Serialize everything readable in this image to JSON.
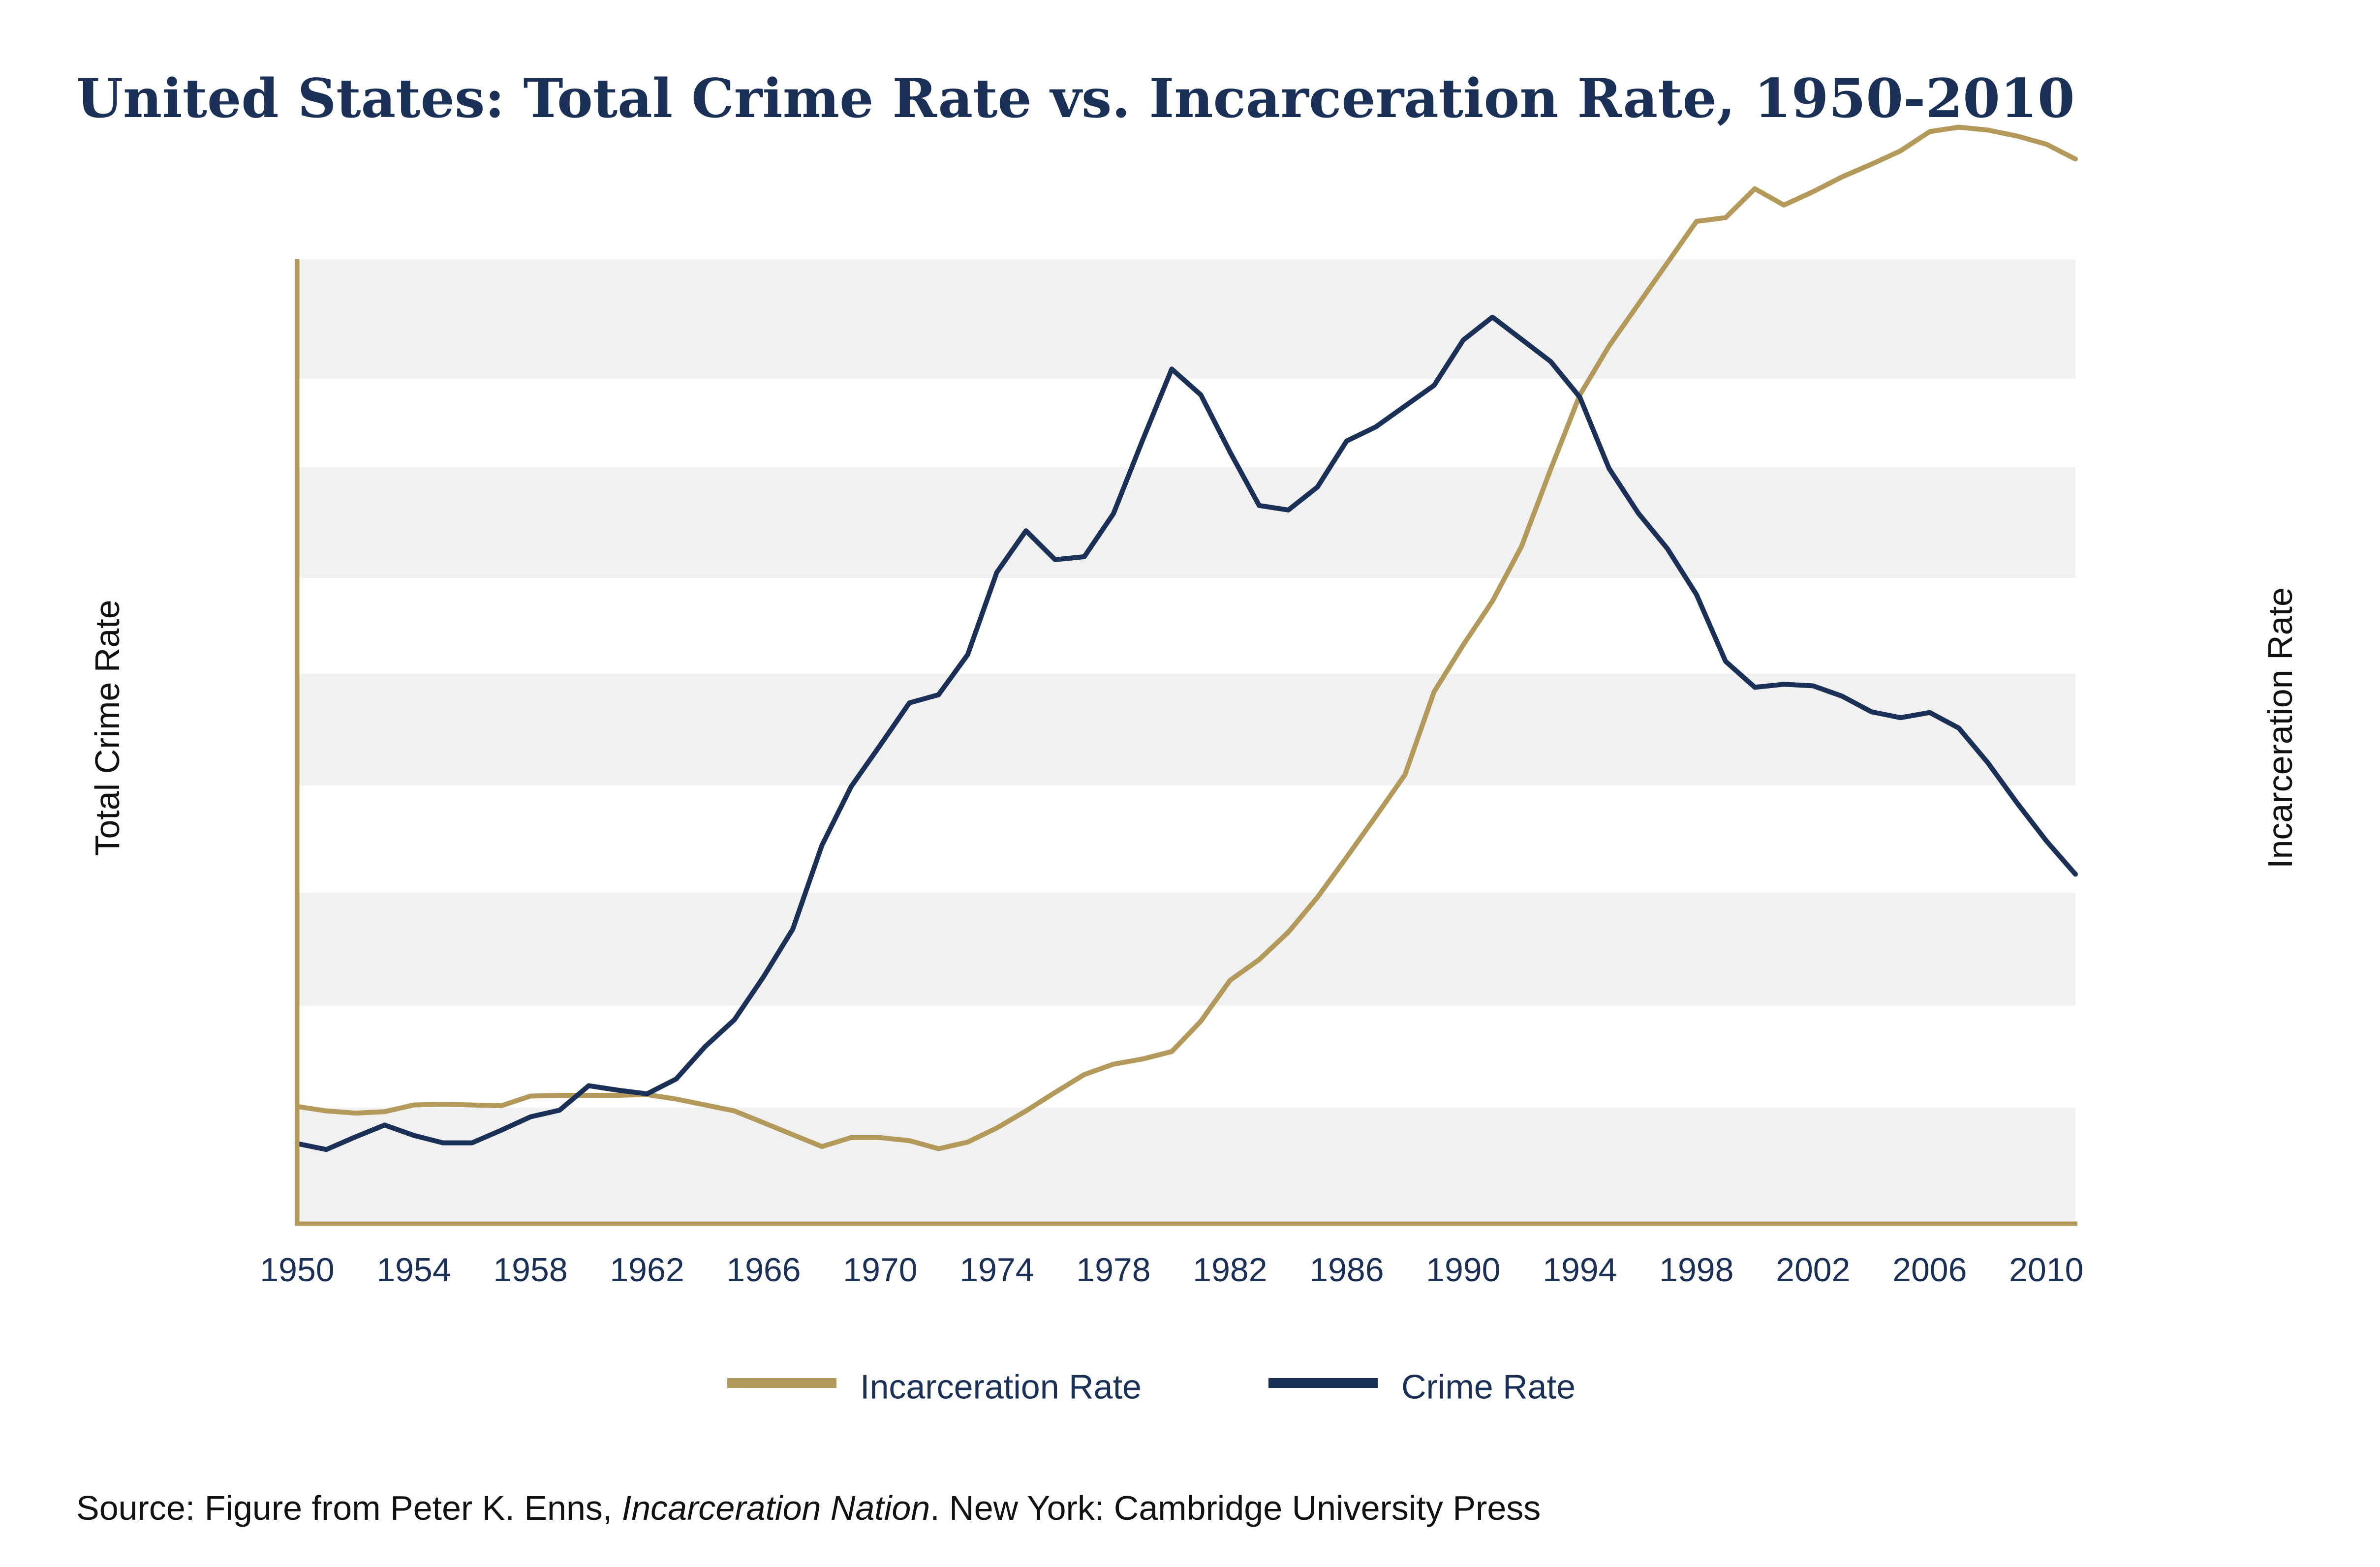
{
  "chart_data": {
    "type": "line",
    "title": "United States: Total Crime Rate vs. Incarceration Rate, 1950-2010",
    "ylabel_left": "Total Crime Rate",
    "ylabel_right": "Incarceration Rate",
    "xlabel": "",
    "xlim": [
      1950,
      2011
    ],
    "x_ticks": [
      "1950",
      "1954",
      "1958",
      "1962",
      "1966",
      "1970",
      "1974",
      "1978",
      "1982",
      "1986",
      "1990",
      "1994",
      "1998",
      "2002",
      "2006",
      "2010"
    ],
    "grid": "alternating horizontal bands",
    "legend_position": "bottom-center",
    "series": [
      {
        "name": "Incarceration Rate",
        "color": "#b39a5a",
        "points": [
          [
            1950,
            0.158
          ],
          [
            1951,
            0.152
          ],
          [
            1952,
            0.149
          ],
          [
            1953,
            0.151
          ],
          [
            1954,
            0.16
          ],
          [
            1955,
            0.161
          ],
          [
            1956,
            0.16
          ],
          [
            1957,
            0.159
          ],
          [
            1958,
            0.172
          ],
          [
            1959,
            0.173
          ],
          [
            1960,
            0.173
          ],
          [
            1961,
            0.173
          ],
          [
            1962,
            0.174
          ],
          [
            1963,
            0.168
          ],
          [
            1964,
            0.16
          ],
          [
            1965,
            0.152
          ],
          [
            1966,
            0.136
          ],
          [
            1967,
            0.12
          ],
          [
            1968,
            0.104
          ],
          [
            1969,
            0.116
          ],
          [
            1970,
            0.116
          ],
          [
            1971,
            0.112
          ],
          [
            1972,
            0.101
          ],
          [
            1973,
            0.11
          ],
          [
            1974,
            0.129
          ],
          [
            1975,
            0.152
          ],
          [
            1976,
            0.177
          ],
          [
            1977,
            0.201
          ],
          [
            1978,
            0.215
          ],
          [
            1979,
            0.222
          ],
          [
            1980,
            0.232
          ],
          [
            1981,
            0.273
          ],
          [
            1982,
            0.328
          ],
          [
            1983,
            0.356
          ],
          [
            1984,
            0.393
          ],
          [
            1985,
            0.44
          ],
          [
            1986,
            0.494
          ],
          [
            1987,
            0.549
          ],
          [
            1988,
            0.605
          ],
          [
            1989,
            0.717
          ],
          [
            1990,
            0.78
          ],
          [
            1991,
            0.839
          ],
          [
            1992,
            0.913
          ],
          [
            1993,
            1.017
          ],
          [
            1994,
            1.117
          ],
          [
            1995,
            1.183
          ],
          [
            1996,
            1.239
          ],
          [
            1997,
            1.295
          ],
          [
            1998,
            1.351
          ],
          [
            1999,
            1.356
          ],
          [
            2000,
            1.395
          ],
          [
            2001,
            1.373
          ],
          [
            2002,
            1.391
          ],
          [
            2003,
            1.411
          ],
          [
            2004,
            1.428
          ],
          [
            2005,
            1.446
          ],
          [
            2006,
            1.472
          ],
          [
            2007,
            1.478
          ],
          [
            2008,
            1.474
          ],
          [
            2009,
            1.466
          ],
          [
            2010,
            1.455
          ],
          [
            2011,
            1.435
          ]
        ]
      },
      {
        "name": "Crime Rate",
        "color": "#1b3057",
        "points": [
          [
            1950,
            0.108
          ],
          [
            1951,
            0.1
          ],
          [
            1952,
            0.117
          ],
          [
            1953,
            0.133
          ],
          [
            1954,
            0.119
          ],
          [
            1955,
            0.109
          ],
          [
            1956,
            0.109
          ],
          [
            1957,
            0.126
          ],
          [
            1958,
            0.144
          ],
          [
            1959,
            0.153
          ],
          [
            1960,
            0.186
          ],
          [
            1961,
            0.18
          ],
          [
            1962,
            0.175
          ],
          [
            1963,
            0.195
          ],
          [
            1964,
            0.239
          ],
          [
            1965,
            0.275
          ],
          [
            1966,
            0.333
          ],
          [
            1967,
            0.397
          ],
          [
            1968,
            0.51
          ],
          [
            1969,
            0.589
          ],
          [
            1970,
            0.645
          ],
          [
            1971,
            0.702
          ],
          [
            1972,
            0.713
          ],
          [
            1973,
            0.767
          ],
          [
            1974,
            0.878
          ],
          [
            1975,
            0.934
          ],
          [
            1976,
            0.895
          ],
          [
            1977,
            0.899
          ],
          [
            1978,
            0.957
          ],
          [
            1979,
            1.056
          ],
          [
            1980,
            1.152
          ],
          [
            1981,
            1.117
          ],
          [
            1982,
            1.04
          ],
          [
            1983,
            0.968
          ],
          [
            1984,
            0.962
          ],
          [
            1985,
            0.993
          ],
          [
            1986,
            1.055
          ],
          [
            1987,
            1.074
          ],
          [
            1988,
            1.102
          ],
          [
            1989,
            1.13
          ],
          [
            1990,
            1.191
          ],
          [
            1991,
            1.222
          ],
          [
            1992,
            1.192
          ],
          [
            1993,
            1.162
          ],
          [
            1994,
            1.114
          ],
          [
            1995,
            1.018
          ],
          [
            1996,
            0.958
          ],
          [
            1997,
            0.91
          ],
          [
            1998,
            0.848
          ],
          [
            1999,
            0.758
          ],
          [
            2000,
            0.723
          ],
          [
            2001,
            0.727
          ],
          [
            2002,
            0.725
          ],
          [
            2003,
            0.711
          ],
          [
            2004,
            0.69
          ],
          [
            2005,
            0.682
          ],
          [
            2006,
            0.689
          ],
          [
            2007,
            0.668
          ],
          [
            2008,
            0.621
          ],
          [
            2009,
            0.567
          ],
          [
            2010,
            0.516
          ],
          [
            2011,
            0.471
          ]
        ]
      }
    ]
  },
  "source": {
    "prefix": "Source: Figure from Peter K. Enns, ",
    "book_title": "Incarceration Nation",
    "suffix": ". New York: Cambridge University Press"
  }
}
